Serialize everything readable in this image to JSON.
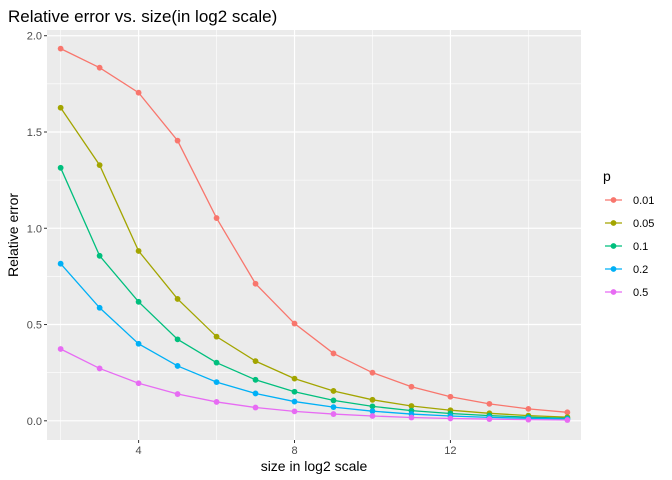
{
  "chart_data": {
    "type": "line",
    "title": "Relative error vs. size(in log2 scale)",
    "xlabel": "size in log2 scale",
    "ylabel": "Relative error",
    "xlim": [
      1.65,
      15.35
    ],
    "ylim": [
      -0.0997,
      2.0297
    ],
    "x_ticks": [
      4,
      8,
      12
    ],
    "y_ticks": [
      0.0,
      0.5,
      1.0,
      1.5,
      2.0
    ],
    "y_tick_labels": [
      "0.0",
      "0.5",
      "1.0",
      "1.5",
      "2.0"
    ],
    "grid": true,
    "panel_background": "#EBEBEB",
    "legend": {
      "title": "p",
      "position": "right"
    },
    "x": [
      2,
      3,
      4,
      5,
      6,
      7,
      8,
      9,
      10,
      11,
      12,
      13,
      14,
      15
    ],
    "series": [
      {
        "name": "0.01",
        "color": "#F8766D",
        "values": [
          1.933,
          1.834,
          1.704,
          1.455,
          1.053,
          0.712,
          0.505,
          0.35,
          0.25,
          0.177,
          0.125,
          0.088,
          0.062,
          0.044
        ]
      },
      {
        "name": "0.05",
        "color": "#A3A500",
        "values": [
          1.626,
          1.328,
          0.882,
          0.633,
          0.437,
          0.31,
          0.219,
          0.155,
          0.109,
          0.077,
          0.055,
          0.039,
          0.027,
          0.019
        ]
      },
      {
        "name": "0.1",
        "color": "#00BF7D",
        "values": [
          1.314,
          0.857,
          0.618,
          0.423,
          0.302,
          0.213,
          0.151,
          0.106,
          0.075,
          0.053,
          0.038,
          0.027,
          0.019,
          0.013
        ]
      },
      {
        "name": "0.2",
        "color": "#00B0F6",
        "values": [
          0.816,
          0.587,
          0.4,
          0.285,
          0.201,
          0.142,
          0.1,
          0.071,
          0.05,
          0.035,
          0.025,
          0.018,
          0.013,
          0.009
        ]
      },
      {
        "name": "0.5",
        "color": "#E76BF3",
        "values": [
          0.373,
          0.272,
          0.195,
          0.139,
          0.098,
          0.069,
          0.049,
          0.035,
          0.025,
          0.017,
          0.012,
          0.009,
          0.006,
          0.004
        ]
      }
    ]
  }
}
